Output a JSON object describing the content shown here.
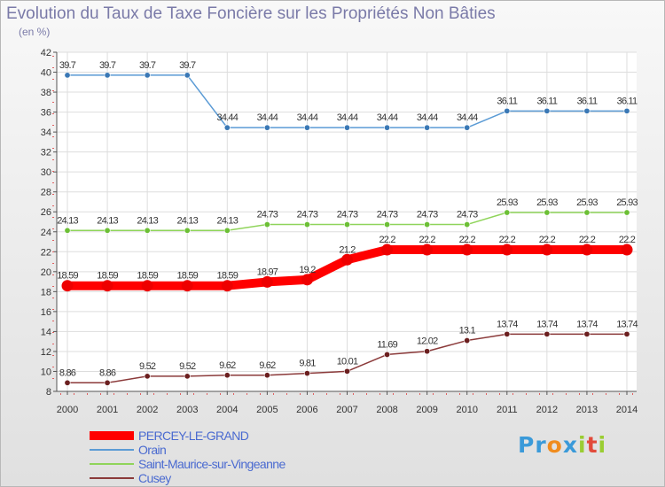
{
  "title": "Evolution du Taux de Taxe Foncière sur les Propriétés Non Bâties",
  "subtitle": "(en %)",
  "logo": {
    "letters": [
      {
        "ch": "P",
        "color": "#3a9ad9"
      },
      {
        "ch": "r",
        "color": "#3a9ad9"
      },
      {
        "ch": "o",
        "color": "#f08c1e"
      },
      {
        "ch": "x",
        "color": "#3a9ad9"
      },
      {
        "ch": "i",
        "color": "#9acd32"
      },
      {
        "ch": "t",
        "color": "#e24a3a"
      },
      {
        "ch": "i",
        "color": "#9acd32"
      }
    ]
  },
  "chart_data": {
    "type": "line",
    "title": "Evolution du Taux de Taxe Foncière sur les Propriétés Non Bâties",
    "ylabel": "(en %)",
    "xlabel": "",
    "ylim": [
      8,
      42
    ],
    "yticks": [
      8,
      10,
      12,
      14,
      16,
      18,
      20,
      22,
      24,
      26,
      28,
      30,
      32,
      34,
      36,
      38,
      40,
      42
    ],
    "x": [
      "2000",
      "2001",
      "2002",
      "2003",
      "2004",
      "2005",
      "2006",
      "2007",
      "2008",
      "2009",
      "2010",
      "2011",
      "2012",
      "2013",
      "2014"
    ],
    "grid": true,
    "series": [
      {
        "name": "Orain",
        "color": "#5b9bd5",
        "marker": "#3a78b5",
        "weight": "thin",
        "values": [
          39.7,
          39.7,
          39.7,
          39.7,
          34.44,
          34.44,
          34.44,
          34.44,
          34.44,
          34.44,
          34.44,
          36.11,
          36.11,
          36.11,
          36.11
        ],
        "labels": [
          "39.7",
          "39.7",
          "39.7",
          "39.7",
          "34.44",
          "34.44",
          "34.44",
          "34.44",
          "34.44",
          "34.44",
          "34.44",
          "36.11",
          "36.11",
          "36.11",
          "36.11"
        ]
      },
      {
        "name": "Saint-Maurice-sur-Vingeanne",
        "color": "#8fd45a",
        "marker": "#6cbf35",
        "weight": "thin",
        "values": [
          24.13,
          24.13,
          24.13,
          24.13,
          24.13,
          24.73,
          24.73,
          24.73,
          24.73,
          24.73,
          24.73,
          25.93,
          25.93,
          25.93,
          25.93
        ],
        "labels": [
          "24.13",
          "24.13",
          "24.13",
          "24.13",
          "24.13",
          "24.73",
          "24.73",
          "24.73",
          "24.73",
          "24.73",
          "24.73",
          "25.93",
          "25.93",
          "25.93",
          "25.93"
        ]
      },
      {
        "name": "PERCEY-LE-GRAND",
        "color": "#ff0000",
        "marker": "#ee0000",
        "weight": "thick",
        "values": [
          18.59,
          18.59,
          18.59,
          18.59,
          18.59,
          18.97,
          19.2,
          21.2,
          22.2,
          22.2,
          22.2,
          22.2,
          22.2,
          22.2,
          22.2
        ],
        "labels": [
          "18.59",
          "18.59",
          "18.59",
          "18.59",
          "18.59",
          "18.97",
          "19.2",
          "21.2",
          "22.2",
          "22.2",
          "22.2",
          "22.2",
          "22.2",
          "22.2",
          "22.2"
        ]
      },
      {
        "name": "Cusey",
        "color": "#8b3a3a",
        "marker": "#6b1f1f",
        "weight": "thin",
        "values": [
          8.86,
          8.86,
          9.52,
          9.52,
          9.62,
          9.62,
          9.81,
          10.01,
          11.69,
          12.02,
          13.1,
          13.74,
          13.74,
          13.74,
          13.74
        ],
        "labels": [
          "8.86",
          "8.86",
          "9.52",
          "9.52",
          "9.62",
          "9.62",
          "9.81",
          "10.01",
          "11.69",
          "12.02",
          "13.1",
          "13.74",
          "13.74",
          "13.74",
          "13.74"
        ]
      }
    ],
    "legend": {
      "placement": "bottom-left",
      "order": [
        "PERCEY-LE-GRAND",
        "Orain",
        "Saint-Maurice-sur-Vingeanne",
        "Cusey"
      ]
    }
  }
}
